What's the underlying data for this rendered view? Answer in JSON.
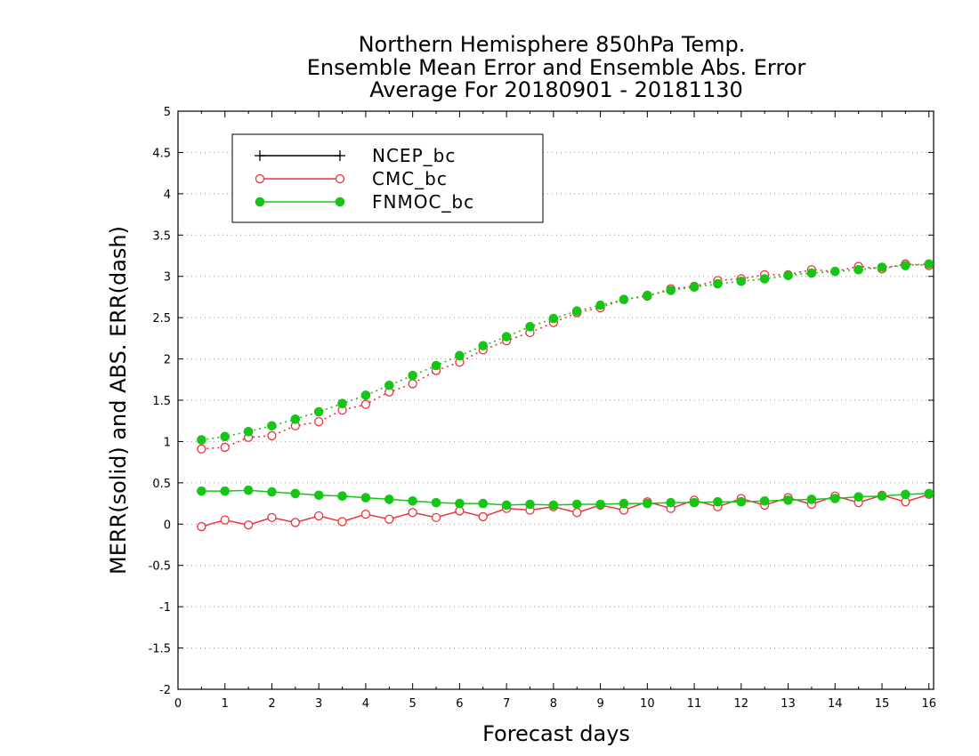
{
  "chart_data": {
    "type": "line",
    "title": [
      "Northern Hemisphere 850hPa Temp.",
      "Ensemble Mean Error and Ensemble Abs. Error",
      "Average For 20180901 - 20181130"
    ],
    "xlabel": "Forecast days",
    "ylabel": "MERR(solid) and ABS. ERR(dash)",
    "xlim": [
      0,
      16.1
    ],
    "ylim": [
      -2,
      5
    ],
    "xticks": [
      0,
      1,
      2,
      3,
      4,
      5,
      6,
      7,
      8,
      9,
      10,
      11,
      12,
      13,
      14,
      15,
      16
    ],
    "yticks": [
      -2,
      -1.5,
      -1,
      -0.5,
      0,
      0.5,
      1,
      1.5,
      2,
      2.5,
      3,
      3.5,
      4,
      4.5,
      5
    ],
    "ytick_labels": [
      "-2",
      "-1.5",
      "-1",
      "-0.5",
      "0",
      "0.5",
      "1",
      "1.5",
      "2",
      "2.5",
      "3",
      "3.5",
      "4",
      "4.5",
      "5"
    ],
    "grid": "horizontal dotted",
    "legend_position": "top-left",
    "x": [
      0.5,
      1,
      1.5,
      2,
      2.5,
      3,
      3.5,
      4,
      4.5,
      5,
      5.5,
      6,
      6.5,
      7,
      7.5,
      8,
      8.5,
      9,
      9.5,
      10,
      10.5,
      11,
      11.5,
      12,
      12.5,
      13,
      13.5,
      14,
      14.5,
      15,
      15.5,
      16
    ],
    "series": [
      {
        "name": "NCEP_bc",
        "color": "#000000",
        "marker": "plus",
        "merr": [],
        "abserr": []
      },
      {
        "name": "CMC_bc",
        "color": "#e8343c",
        "marker": "open-circle",
        "merr": [
          -0.03,
          0.05,
          -0.01,
          0.08,
          0.02,
          0.1,
          0.03,
          0.12,
          0.06,
          0.14,
          0.08,
          0.16,
          0.09,
          0.19,
          0.17,
          0.21,
          0.14,
          0.23,
          0.17,
          0.27,
          0.19,
          0.29,
          0.21,
          0.31,
          0.23,
          0.32,
          0.24,
          0.34,
          0.26,
          0.35,
          0.27,
          0.36
        ],
        "abserr": [
          0.91,
          0.93,
          1.05,
          1.07,
          1.19,
          1.24,
          1.38,
          1.45,
          1.6,
          1.7,
          1.86,
          1.96,
          2.11,
          2.22,
          2.32,
          2.44,
          2.56,
          2.62,
          2.72,
          2.76,
          2.85,
          2.88,
          2.95,
          2.97,
          3.02,
          3.02,
          3.08,
          3.06,
          3.12,
          3.09,
          3.15,
          3.13
        ]
      },
      {
        "name": "FNMOC_bc",
        "color": "#16c516",
        "marker": "filled-circle",
        "merr": [
          0.4,
          0.4,
          0.41,
          0.39,
          0.37,
          0.35,
          0.34,
          0.32,
          0.3,
          0.28,
          0.26,
          0.25,
          0.25,
          0.23,
          0.24,
          0.23,
          0.24,
          0.24,
          0.25,
          0.25,
          0.26,
          0.26,
          0.27,
          0.27,
          0.28,
          0.29,
          0.3,
          0.31,
          0.33,
          0.34,
          0.36,
          0.37
        ],
        "abserr": [
          1.02,
          1.06,
          1.12,
          1.19,
          1.27,
          1.36,
          1.46,
          1.56,
          1.68,
          1.8,
          1.92,
          2.04,
          2.16,
          2.27,
          2.39,
          2.49,
          2.58,
          2.65,
          2.72,
          2.77,
          2.83,
          2.87,
          2.91,
          2.94,
          2.97,
          3.01,
          3.04,
          3.06,
          3.08,
          3.11,
          3.13,
          3.15
        ]
      }
    ]
  }
}
